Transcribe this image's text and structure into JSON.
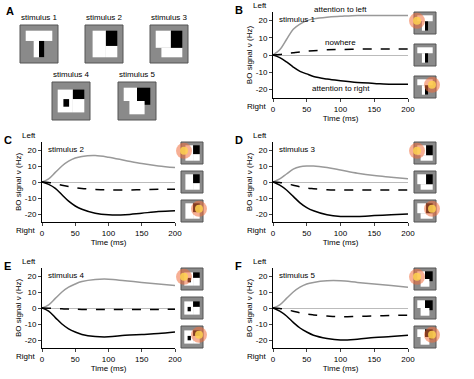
{
  "panel_a": {
    "label": "A",
    "stimuli": [
      "stimulus 1",
      "stimulus 2",
      "stimulus 3",
      "stimulus 4",
      "stimulus 5"
    ]
  },
  "chart_data": [
    {
      "type": "line",
      "label": "B",
      "title": "stimulus 1",
      "xlabel": "Time (ms)",
      "ylabel": "BO signal ν (Hz)",
      "annotations": [
        "Left",
        "Right"
      ],
      "grid": false,
      "x": [
        0,
        10,
        20,
        30,
        40,
        50,
        60,
        80,
        100,
        125,
        150,
        175,
        200
      ],
      "xlim": [
        0,
        200
      ],
      "xticks": [
        0,
        50,
        100,
        150,
        200
      ],
      "ylim": [
        -25,
        25
      ],
      "yticks": [
        -20,
        -10,
        0,
        10,
        20
      ],
      "series": [
        {
          "name": "attention to left",
          "color": "#999999",
          "line_style": "solid",
          "values": [
            0,
            3,
            9,
            15,
            18,
            20,
            21,
            22,
            22.5,
            23,
            23,
            23,
            23
          ]
        },
        {
          "name": "nowhere",
          "color": "#000000",
          "line_style": "dash",
          "values": [
            0,
            0.3,
            0.8,
            1.3,
            1.8,
            2.2,
            2.5,
            3,
            3.2,
            3.4,
            3.5,
            3.5,
            3.5
          ]
        },
        {
          "name": "attention to right",
          "color": "#000000",
          "line_style": "solid",
          "values": [
            0,
            -1.5,
            -4,
            -7,
            -9.5,
            -11,
            -12.5,
            -14,
            -15,
            -16,
            -16.5,
            -17,
            -17
          ]
        }
      ]
    },
    {
      "type": "line",
      "label": "C",
      "title": "stimulus 2",
      "xlabel": "Time (ms)",
      "ylabel": "BO signal ν (Hz)",
      "annotations": [
        "Left",
        "Right"
      ],
      "grid": false,
      "x": [
        0,
        10,
        20,
        30,
        40,
        50,
        60,
        80,
        100,
        125,
        150,
        175,
        200
      ],
      "xlim": [
        0,
        200
      ],
      "xticks": [
        0,
        50,
        100,
        150,
        200
      ],
      "ylim": [
        -25,
        25
      ],
      "yticks": [
        -20,
        -10,
        0,
        10,
        20
      ],
      "series": [
        {
          "color": "#999999",
          "line_style": "solid",
          "values": [
            0,
            2,
            6,
            10,
            13,
            15,
            16,
            16.5,
            15.5,
            13.5,
            11.5,
            10,
            9
          ]
        },
        {
          "color": "#000000",
          "line_style": "dash",
          "values": [
            0,
            -0.3,
            -1,
            -2,
            -2.8,
            -3.5,
            -4,
            -4.6,
            -5,
            -5,
            -4.8,
            -4.6,
            -4.5
          ]
        },
        {
          "color": "#000000",
          "line_style": "solid",
          "values": [
            0,
            -1.5,
            -4,
            -8,
            -12,
            -15,
            -17,
            -19.5,
            -20.5,
            -20.5,
            -19.5,
            -18.5,
            -18
          ]
        }
      ]
    },
    {
      "type": "line",
      "label": "D",
      "title": "stimulus 3",
      "xlabel": "Time (ms)",
      "ylabel": "BO signal ν (Hz)",
      "annotations": [
        "Left",
        "Right"
      ],
      "grid": false,
      "x": [
        0,
        10,
        20,
        30,
        40,
        50,
        60,
        80,
        100,
        125,
        150,
        175,
        200
      ],
      "xlim": [
        0,
        200
      ],
      "xticks": [
        0,
        50,
        100,
        150,
        200
      ],
      "ylim": [
        -25,
        25
      ],
      "yticks": [
        -20,
        -10,
        0,
        10,
        20
      ],
      "series": [
        {
          "color": "#999999",
          "line_style": "solid",
          "values": [
            0,
            2,
            5,
            8,
            9.5,
            10,
            10,
            9,
            7.5,
            5.5,
            4,
            3,
            2
          ]
        },
        {
          "color": "#000000",
          "line_style": "dash",
          "values": [
            0,
            -0.3,
            -1,
            -2,
            -3,
            -3.8,
            -4.2,
            -4.8,
            -5,
            -5,
            -5,
            -5,
            -5
          ]
        },
        {
          "color": "#000000",
          "line_style": "solid",
          "values": [
            0,
            -2,
            -5,
            -9,
            -13,
            -16,
            -18,
            -20.5,
            -21.5,
            -21.5,
            -21,
            -20.5,
            -20
          ]
        }
      ]
    },
    {
      "type": "line",
      "label": "E",
      "title": "stimulus 4",
      "xlabel": "Time (ms)",
      "ylabel": "BO signal ν (Hz)",
      "annotations": [
        "Left",
        "Right"
      ],
      "grid": false,
      "x": [
        0,
        10,
        20,
        30,
        40,
        50,
        60,
        80,
        100,
        125,
        150,
        175,
        200
      ],
      "xlim": [
        0,
        200
      ],
      "xticks": [
        0,
        50,
        100,
        150,
        200
      ],
      "ylim": [
        -25,
        25
      ],
      "yticks": [
        -20,
        -10,
        0,
        10,
        20
      ],
      "series": [
        {
          "color": "#999999",
          "line_style": "solid",
          "values": [
            0,
            2,
            6,
            10,
            13,
            15,
            16.5,
            17.8,
            18,
            17,
            16,
            15,
            14
          ]
        },
        {
          "color": "#000000",
          "line_style": "dash",
          "values": [
            0,
            -0.1,
            -0.3,
            -0.5,
            -0.7,
            -0.8,
            -0.9,
            -1,
            -1,
            -1,
            -1,
            -0.9,
            -0.8
          ]
        },
        {
          "color": "#000000",
          "line_style": "solid",
          "values": [
            0,
            -2,
            -6,
            -10,
            -13,
            -15,
            -16.5,
            -17.8,
            -18,
            -17,
            -16.5,
            -16,
            -15
          ]
        }
      ]
    },
    {
      "type": "line",
      "label": "F",
      "title": "stimulus 5",
      "xlabel": "Time (ms)",
      "ylabel": "BO signal ν (Hz)",
      "annotations": [
        "Left",
        "Right"
      ],
      "grid": false,
      "x": [
        0,
        10,
        20,
        30,
        40,
        50,
        60,
        80,
        100,
        125,
        150,
        175,
        200
      ],
      "xlim": [
        0,
        200
      ],
      "xticks": [
        0,
        50,
        100,
        150,
        200
      ],
      "ylim": [
        -25,
        25
      ],
      "yticks": [
        -20,
        -10,
        0,
        10,
        20
      ],
      "series": [
        {
          "color": "#999999",
          "line_style": "solid",
          "values": [
            0,
            2,
            6,
            10,
            13,
            15,
            16,
            17,
            17,
            16,
            15,
            14,
            13
          ]
        },
        {
          "color": "#000000",
          "line_style": "dash",
          "values": [
            0,
            -0.3,
            -1,
            -2,
            -3,
            -3.8,
            -4.3,
            -5,
            -5.5,
            -5.3,
            -5,
            -4.7,
            -4.5
          ]
        },
        {
          "color": "#000000",
          "line_style": "solid",
          "values": [
            0,
            -2,
            -5,
            -9,
            -12.5,
            -15,
            -17,
            -19,
            -20,
            -19.5,
            -18.5,
            -17.8,
            -17
          ]
        }
      ]
    }
  ]
}
